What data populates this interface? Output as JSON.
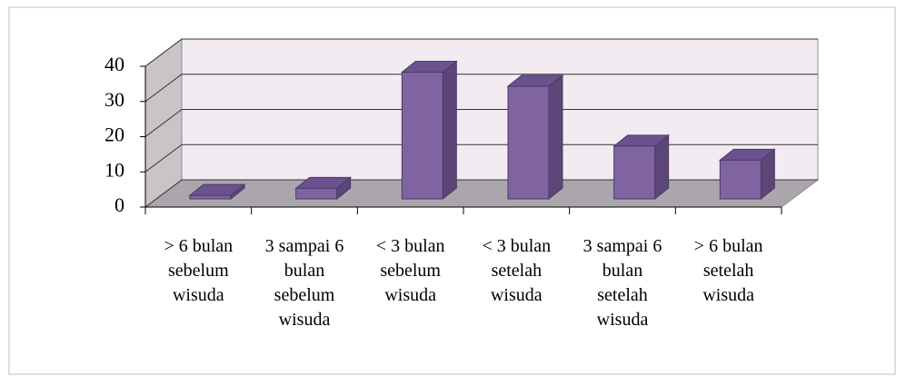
{
  "chart_data": {
    "type": "bar3d",
    "categories": [
      "> 6 bulan sebelum wisuda",
      "3 sampai 6 bulan sebelum wisuda",
      "< 3 bulan sebelum wisuda",
      "< 3 bulan setelah wisuda",
      "3 sampai 6 bulan setelah wisuda",
      "> 6 bulan setelah wisuda"
    ],
    "values": [
      1,
      3,
      36,
      32,
      15,
      11
    ],
    "color": "#8064a2",
    "ylim": [
      0,
      40
    ],
    "yticks": [
      0,
      10,
      20,
      30,
      40
    ],
    "grid": true
  }
}
